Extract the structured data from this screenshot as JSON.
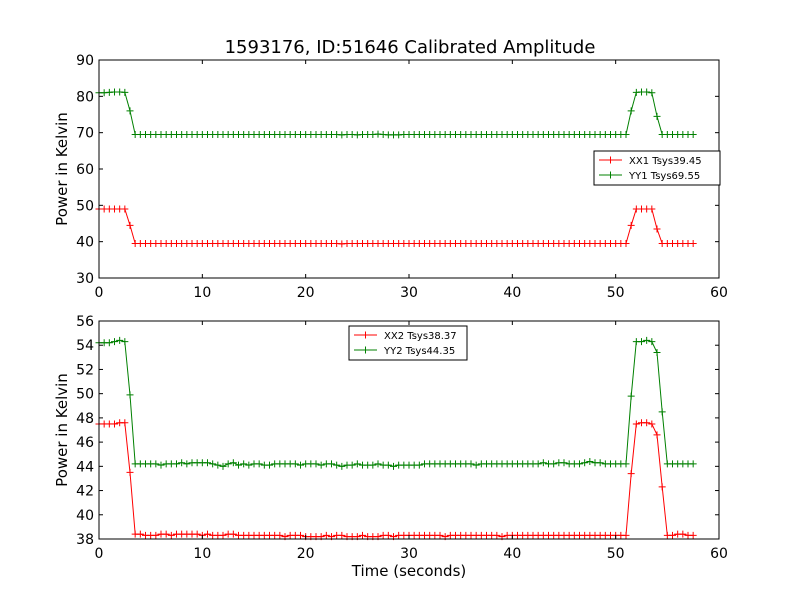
{
  "title": "1593176, ID:51646 Calibrated Amplitude",
  "chart_data": [
    {
      "type": "line",
      "ylabel": "Power in Kelvin",
      "xlabel": "",
      "xlim": [
        0,
        60
      ],
      "ylim": [
        30,
        90
      ],
      "xticks": [
        "0",
        "10",
        "20",
        "30",
        "40",
        "50",
        "60"
      ],
      "yticks": [
        "30",
        "40",
        "50",
        "60",
        "70",
        "80",
        "90"
      ],
      "legend_position": "right",
      "series": [
        {
          "name": "XX1 Tsys39.45",
          "color": "#ff0000",
          "x": [
            0,
            0.5,
            1,
            1.5,
            2,
            2.5,
            3,
            3.5,
            4,
            4.5,
            5,
            5.5,
            6,
            6.5,
            7,
            7.5,
            8,
            8.5,
            9,
            9.5,
            10,
            10.5,
            11,
            11.5,
            12,
            12.5,
            13,
            13.5,
            14,
            14.5,
            15,
            15.5,
            16,
            16.5,
            17,
            17.5,
            18,
            18.5,
            19,
            19.5,
            20,
            20.5,
            21,
            21.5,
            22,
            22.5,
            23,
            23.5,
            24,
            24.5,
            25,
            25.5,
            26,
            26.5,
            27,
            27.5,
            28,
            28.5,
            29,
            29.5,
            30,
            30.5,
            31,
            31.5,
            32,
            32.5,
            33,
            33.5,
            34,
            34.5,
            35,
            35.5,
            36,
            36.5,
            37,
            37.5,
            38,
            38.5,
            39,
            39.5,
            40,
            40.5,
            41,
            41.5,
            42,
            42.5,
            43,
            43.5,
            44,
            44.5,
            45,
            45.5,
            46,
            46.5,
            47,
            47.5,
            48,
            48.5,
            49,
            49.5,
            50,
            50.5,
            51,
            51.5,
            52,
            52.5,
            53,
            53.5,
            54,
            54.5,
            55,
            55.5,
            56,
            56.5,
            57,
            57.5
          ],
          "y": [
            49,
            49,
            49,
            49,
            49,
            49,
            44.5,
            39.5,
            39.5,
            39.5,
            39.5,
            39.5,
            39.5,
            39.5,
            39.5,
            39.5,
            39.5,
            39.5,
            39.5,
            39.5,
            39.5,
            39.5,
            39.5,
            39.5,
            39.5,
            39.5,
            39.5,
            39.5,
            39.5,
            39.5,
            39.5,
            39.5,
            39.5,
            39.5,
            39.5,
            39.5,
            39.5,
            39.5,
            39.5,
            39.5,
            39.5,
            39.5,
            39.5,
            39.5,
            39.5,
            39.5,
            39.5,
            39.4,
            39.5,
            39.5,
            39.5,
            39.5,
            39.5,
            39.5,
            39.5,
            39.5,
            39.5,
            39.5,
            39.5,
            39.5,
            39.5,
            39.5,
            39.5,
            39.5,
            39.5,
            39.5,
            39.5,
            39.5,
            39.5,
            39.5,
            39.5,
            39.5,
            39.5,
            39.5,
            39.5,
            39.5,
            39.5,
            39.5,
            39.5,
            39.5,
            39.5,
            39.5,
            39.5,
            39.5,
            39.5,
            39.5,
            39.5,
            39.5,
            39.5,
            39.5,
            39.5,
            39.5,
            39.5,
            39.5,
            39.5,
            39.5,
            39.5,
            39.5,
            39.5,
            39.5,
            39.5,
            39.5,
            39.5,
            44.5,
            49,
            49,
            49,
            49,
            43.5,
            39.5,
            39.5,
            39.5,
            39.5,
            39.5,
            39.5,
            39.5
          ]
        },
        {
          "name": "YY1 Tsys69.55",
          "color": "#008000",
          "x": [
            0,
            0.5,
            1,
            1.5,
            2,
            2.5,
            3,
            3.5,
            4,
            4.5,
            5,
            5.5,
            6,
            6.5,
            7,
            7.5,
            8,
            8.5,
            9,
            9.5,
            10,
            10.5,
            11,
            11.5,
            12,
            12.5,
            13,
            13.5,
            14,
            14.5,
            15,
            15.5,
            16,
            16.5,
            17,
            17.5,
            18,
            18.5,
            19,
            19.5,
            20,
            20.5,
            21,
            21.5,
            22,
            22.5,
            23,
            23.5,
            24,
            24.5,
            25,
            25.5,
            26,
            26.5,
            27,
            27.5,
            28,
            28.5,
            29,
            29.5,
            30,
            30.5,
            31,
            31.5,
            32,
            32.5,
            33,
            33.5,
            34,
            34.5,
            35,
            35.5,
            36,
            36.5,
            37,
            37.5,
            38,
            38.5,
            39,
            39.5,
            40,
            40.5,
            41,
            41.5,
            42,
            42.5,
            43,
            43.5,
            44,
            44.5,
            45,
            45.5,
            46,
            46.5,
            47,
            47.5,
            48,
            48.5,
            49,
            49.5,
            50,
            50.5,
            51,
            51.5,
            52,
            52.5,
            53,
            53.5,
            54,
            54.5,
            55,
            55.5,
            56,
            56.5,
            57,
            57.5
          ],
          "y": [
            81,
            81,
            81.1,
            81.2,
            81.2,
            81.1,
            76,
            69.5,
            69.5,
            69.5,
            69.5,
            69.5,
            69.5,
            69.5,
            69.5,
            69.5,
            69.5,
            69.5,
            69.5,
            69.5,
            69.5,
            69.5,
            69.5,
            69.5,
            69.5,
            69.5,
            69.5,
            69.5,
            69.5,
            69.5,
            69.5,
            69.5,
            69.5,
            69.5,
            69.5,
            69.5,
            69.5,
            69.5,
            69.5,
            69.5,
            69.5,
            69.5,
            69.5,
            69.5,
            69.5,
            69.5,
            69.5,
            69.4,
            69.5,
            69.5,
            69.4,
            69.5,
            69.5,
            69.5,
            69.6,
            69.5,
            69.4,
            69.4,
            69.4,
            69.5,
            69.5,
            69.5,
            69.5,
            69.5,
            69.5,
            69.5,
            69.5,
            69.5,
            69.5,
            69.5,
            69.5,
            69.5,
            69.5,
            69.5,
            69.5,
            69.5,
            69.5,
            69.5,
            69.5,
            69.5,
            69.5,
            69.5,
            69.5,
            69.5,
            69.5,
            69.5,
            69.5,
            69.5,
            69.5,
            69.5,
            69.5,
            69.5,
            69.5,
            69.5,
            69.5,
            69.5,
            69.5,
            69.5,
            69.5,
            69.5,
            69.5,
            69.5,
            69.5,
            76,
            81.1,
            81.2,
            81.2,
            81,
            74.5,
            69.5,
            69.5,
            69.5,
            69.5,
            69.5,
            69.5,
            69.5
          ]
        }
      ]
    },
    {
      "type": "line",
      "ylabel": "Power in Kelvin",
      "xlabel": "Time (seconds)",
      "xlim": [
        0,
        60
      ],
      "ylim": [
        38,
        56
      ],
      "xticks": [
        "0",
        "10",
        "20",
        "30",
        "40",
        "50",
        "60"
      ],
      "yticks": [
        "38",
        "40",
        "42",
        "44",
        "46",
        "48",
        "50",
        "52",
        "54",
        "56"
      ],
      "legend_position": "upper center",
      "series": [
        {
          "name": "XX2 Tsys38.37",
          "color": "#ff0000",
          "x": [
            0,
            0.5,
            1,
            1.5,
            2,
            2.5,
            3,
            3.5,
            4,
            4.5,
            5,
            5.5,
            6,
            6.5,
            7,
            7.5,
            8,
            8.5,
            9,
            9.5,
            10,
            10.5,
            11,
            11.5,
            12,
            12.5,
            13,
            13.5,
            14,
            14.5,
            15,
            15.5,
            16,
            16.5,
            17,
            17.5,
            18,
            18.5,
            19,
            19.5,
            20,
            20.5,
            21,
            21.5,
            22,
            22.5,
            23,
            23.5,
            24,
            24.5,
            25,
            25.5,
            26,
            26.5,
            27,
            27.5,
            28,
            28.5,
            29,
            29.5,
            30,
            30.5,
            31,
            31.5,
            32,
            32.5,
            33,
            33.5,
            34,
            34.5,
            35,
            35.5,
            36,
            36.5,
            37,
            37.5,
            38,
            38.5,
            39,
            39.5,
            40,
            40.5,
            41,
            41.5,
            42,
            42.5,
            43,
            43.5,
            44,
            44.5,
            45,
            45.5,
            46,
            46.5,
            47,
            47.5,
            48,
            48.5,
            49,
            49.5,
            50,
            50.5,
            51,
            51.5,
            52,
            52.5,
            53,
            53.5,
            54,
            54.5,
            55,
            55.5,
            56,
            56.5,
            57,
            57.5
          ],
          "y": [
            47.5,
            47.5,
            47.5,
            47.5,
            47.6,
            47.6,
            43.5,
            38.4,
            38.4,
            38.3,
            38.3,
            38.3,
            38.4,
            38.4,
            38.3,
            38.4,
            38.4,
            38.4,
            38.4,
            38.4,
            38.3,
            38.4,
            38.3,
            38.3,
            38.3,
            38.4,
            38.4,
            38.3,
            38.3,
            38.3,
            38.3,
            38.3,
            38.3,
            38.3,
            38.3,
            38.3,
            38.2,
            38.3,
            38.3,
            38.3,
            38.2,
            38.2,
            38.2,
            38.2,
            38.3,
            38.2,
            38.3,
            38.3,
            38.2,
            38.2,
            38.2,
            38.3,
            38.2,
            38.2,
            38.2,
            38.3,
            38.3,
            38.2,
            38.3,
            38.3,
            38.3,
            38.3,
            38.3,
            38.3,
            38.3,
            38.3,
            38.3,
            38.2,
            38.3,
            38.3,
            38.3,
            38.3,
            38.3,
            38.3,
            38.3,
            38.3,
            38.3,
            38.3,
            38.2,
            38.3,
            38.3,
            38.3,
            38.3,
            38.3,
            38.3,
            38.3,
            38.3,
            38.3,
            38.3,
            38.3,
            38.3,
            38.3,
            38.3,
            38.3,
            38.3,
            38.3,
            38.3,
            38.3,
            38.3,
            38.3,
            38.3,
            38.3,
            38.3,
            43.4,
            47.5,
            47.6,
            47.6,
            47.5,
            46.6,
            42.3,
            38.3,
            38.3,
            38.4,
            38.4,
            38.3,
            38.3
          ]
        },
        {
          "name": "YY2 Tsys44.35",
          "color": "#008000",
          "x": [
            0,
            0.5,
            1,
            1.5,
            2,
            2.5,
            3,
            3.5,
            4,
            4.5,
            5,
            5.5,
            6,
            6.5,
            7,
            7.5,
            8,
            8.5,
            9,
            9.5,
            10,
            10.5,
            11,
            11.5,
            12,
            12.5,
            13,
            13.5,
            14,
            14.5,
            15,
            15.5,
            16,
            16.5,
            17,
            17.5,
            18,
            18.5,
            19,
            19.5,
            20,
            20.5,
            21,
            21.5,
            22,
            22.5,
            23,
            23.5,
            24,
            24.5,
            25,
            25.5,
            26,
            26.5,
            27,
            27.5,
            28,
            28.5,
            29,
            29.5,
            30,
            30.5,
            31,
            31.5,
            32,
            32.5,
            33,
            33.5,
            34,
            34.5,
            35,
            35.5,
            36,
            36.5,
            37,
            37.5,
            38,
            38.5,
            39,
            39.5,
            40,
            40.5,
            41,
            41.5,
            42,
            42.5,
            43,
            43.5,
            44,
            44.5,
            45,
            45.5,
            46,
            46.5,
            47,
            47.5,
            48,
            48.5,
            49,
            49.5,
            50,
            50.5,
            51,
            51.5,
            52,
            52.5,
            53,
            53.5,
            54,
            54.5,
            55,
            55.5,
            56,
            56.5,
            57,
            57.5
          ],
          "y": [
            54.2,
            54.2,
            54.2,
            54.3,
            54.4,
            54.3,
            49.9,
            44.2,
            44.2,
            44.2,
            44.2,
            44.2,
            44.1,
            44.2,
            44.2,
            44.2,
            44.3,
            44.2,
            44.3,
            44.3,
            44.3,
            44.3,
            44.2,
            44.1,
            44.0,
            44.2,
            44.3,
            44.1,
            44.2,
            44.1,
            44.2,
            44.2,
            44.1,
            44.1,
            44.2,
            44.2,
            44.2,
            44.2,
            44.2,
            44.1,
            44.2,
            44.2,
            44.2,
            44.1,
            44.2,
            44.2,
            44.1,
            44.0,
            44.1,
            44.1,
            44.2,
            44.1,
            44.1,
            44.1,
            44.2,
            44.1,
            44.1,
            44.0,
            44.1,
            44.1,
            44.1,
            44.1,
            44.1,
            44.2,
            44.2,
            44.2,
            44.2,
            44.2,
            44.2,
            44.2,
            44.2,
            44.2,
            44.2,
            44.1,
            44.2,
            44.2,
            44.2,
            44.2,
            44.2,
            44.2,
            44.2,
            44.2,
            44.2,
            44.2,
            44.2,
            44.2,
            44.3,
            44.2,
            44.2,
            44.3,
            44.3,
            44.2,
            44.2,
            44.2,
            44.3,
            44.4,
            44.3,
            44.3,
            44.2,
            44.2,
            44.2,
            44.2,
            44.2,
            49.8,
            54.3,
            54.3,
            54.4,
            54.3,
            53.4,
            48.5,
            44.2,
            44.2,
            44.2,
            44.2,
            44.2,
            44.2
          ]
        }
      ]
    }
  ]
}
